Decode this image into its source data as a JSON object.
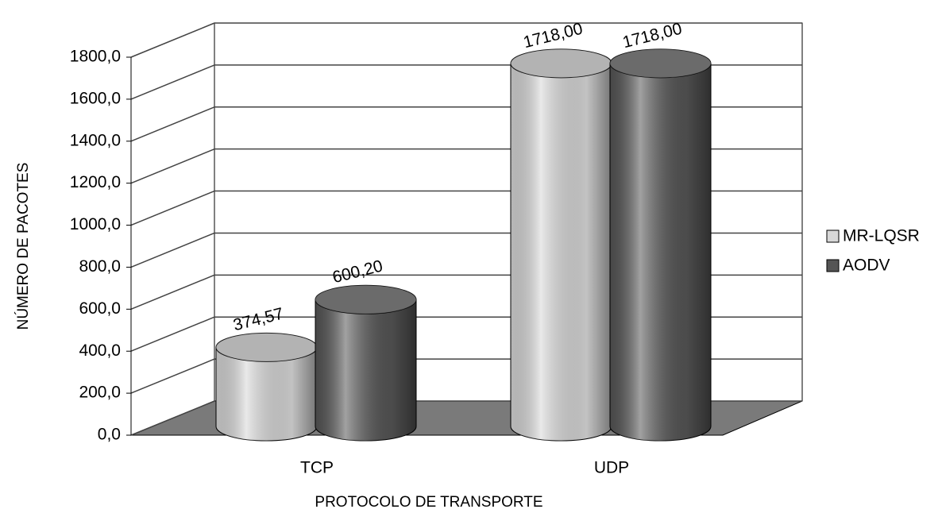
{
  "chart_data": {
    "type": "bar3d",
    "categories": [
      "TCP",
      "UDP"
    ],
    "series": [
      {
        "name": "MR-LQSR",
        "color": "#d8d8d8",
        "values": [
          374.57,
          1718
        ],
        "value_labels": [
          "374,57",
          "1718,00"
        ]
      },
      {
        "name": "AODV",
        "color": "#555555",
        "values": [
          600.2,
          1718
        ],
        "value_labels": [
          "600,20",
          "1718,00"
        ]
      }
    ],
    "ylim": [
      0,
      1800
    ],
    "yticks": [
      {
        "value": 0,
        "label": "0,0"
      },
      {
        "value": 200,
        "label": "200,0"
      },
      {
        "value": 400,
        "label": "400,0"
      },
      {
        "value": 600,
        "label": "600,0"
      },
      {
        "value": 800,
        "label": "800,0"
      },
      {
        "value": 1000,
        "label": "1000,0"
      },
      {
        "value": 1200,
        "label": "1200,0"
      },
      {
        "value": 1400,
        "label": "1400,0"
      },
      {
        "value": 1600,
        "label": "1600,0"
      },
      {
        "value": 1800,
        "label": "1800,0"
      }
    ],
    "y_label": "NÚMERO DE PACOTES",
    "x_label": "PROTOCOLO DE TRANSPORTE",
    "grid": true,
    "legend": "right"
  }
}
